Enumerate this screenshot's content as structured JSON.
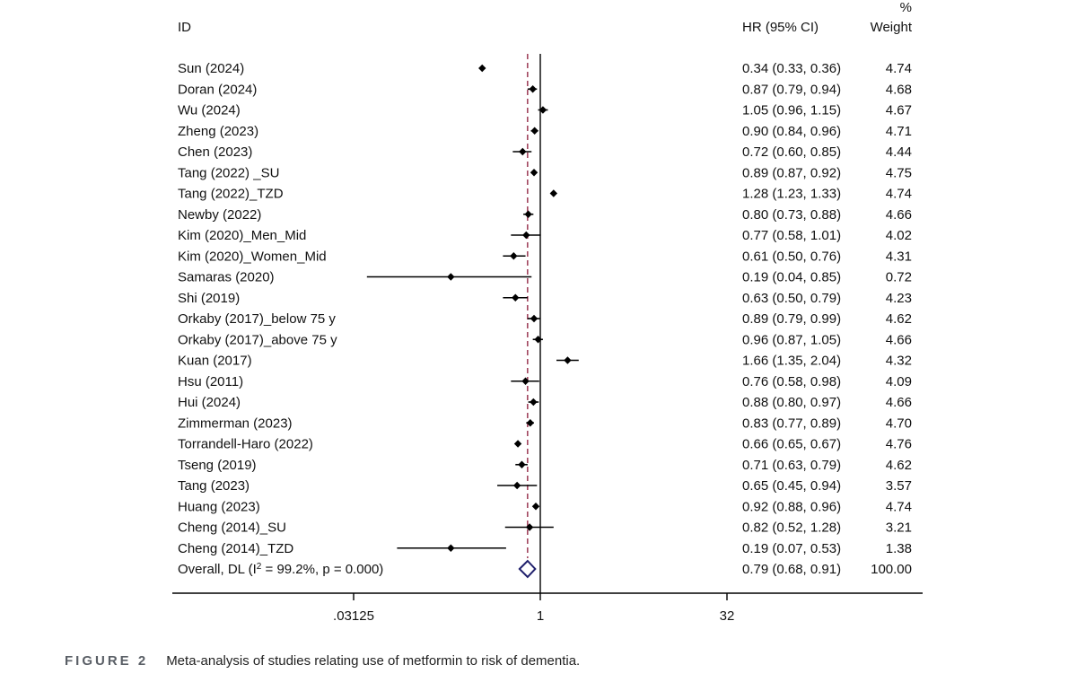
{
  "headers": {
    "id": "ID",
    "hr": "HR (95% CI)",
    "weight_line1": "%",
    "weight_line2": "Weight"
  },
  "chart_data": {
    "type": "forest",
    "x_scale": "log2",
    "x_ticks": [
      ".03125",
      "1",
      "32"
    ],
    "x_tick_values": [
      0.03125,
      1,
      32
    ],
    "xlim": [
      0.03125,
      32
    ],
    "null_line": 1,
    "overall_line": 0.79,
    "colors": {
      "marker": "#000000",
      "diamond": "#1f1f6b",
      "reference": "#8b1a3a"
    },
    "studies": [
      {
        "id": "Sun (2024)",
        "hr": 0.34,
        "lo": 0.33,
        "hi": 0.36,
        "ci": "0.34 (0.33, 0.36)",
        "weight": "4.74"
      },
      {
        "id": "Doran (2024)",
        "hr": 0.87,
        "lo": 0.79,
        "hi": 0.94,
        "ci": "0.87 (0.79, 0.94)",
        "weight": "4.68"
      },
      {
        "id": "Wu (2024)",
        "hr": 1.05,
        "lo": 0.96,
        "hi": 1.15,
        "ci": "1.05 (0.96, 1.15)",
        "weight": "4.67"
      },
      {
        "id": "Zheng (2023)",
        "hr": 0.9,
        "lo": 0.84,
        "hi": 0.96,
        "ci": "0.90 (0.84, 0.96)",
        "weight": "4.71"
      },
      {
        "id": "Chen (2023)",
        "hr": 0.72,
        "lo": 0.6,
        "hi": 0.85,
        "ci": "0.72 (0.60, 0.85)",
        "weight": "4.44"
      },
      {
        "id": "Tang (2022) _SU",
        "hr": 0.89,
        "lo": 0.87,
        "hi": 0.92,
        "ci": "0.89 (0.87, 0.92)",
        "weight": "4.75"
      },
      {
        "id": "Tang (2022)_TZD",
        "hr": 1.28,
        "lo": 1.23,
        "hi": 1.33,
        "ci": "1.28 (1.23, 1.33)",
        "weight": "4.74"
      },
      {
        "id": "Newby (2022)",
        "hr": 0.8,
        "lo": 0.73,
        "hi": 0.88,
        "ci": "0.80 (0.73, 0.88)",
        "weight": "4.66"
      },
      {
        "id": "Kim (2020)_Men_Mid",
        "hr": 0.77,
        "lo": 0.58,
        "hi": 1.01,
        "ci": "0.77 (0.58, 1.01)",
        "weight": "4.02"
      },
      {
        "id": "Kim (2020)_Women_Mid",
        "hr": 0.61,
        "lo": 0.5,
        "hi": 0.76,
        "ci": "0.61 (0.50, 0.76)",
        "weight": "4.31"
      },
      {
        "id": "Samaras (2020)",
        "hr": 0.19,
        "lo": 0.04,
        "hi": 0.85,
        "ci": "0.19 (0.04, 0.85)",
        "weight": "0.72"
      },
      {
        "id": "Shi (2019)",
        "hr": 0.63,
        "lo": 0.5,
        "hi": 0.79,
        "ci": "0.63 (0.50, 0.79)",
        "weight": "4.23"
      },
      {
        "id": "Orkaby (2017)_below 75 y",
        "hr": 0.89,
        "lo": 0.79,
        "hi": 0.99,
        "ci": "0.89 (0.79, 0.99)",
        "weight": "4.62"
      },
      {
        "id": "Orkaby (2017)_above 75 y",
        "hr": 0.96,
        "lo": 0.87,
        "hi": 1.05,
        "ci": "0.96 (0.87, 1.05)",
        "weight": "4.66"
      },
      {
        "id": "Kuan (2017)",
        "hr": 1.66,
        "lo": 1.35,
        "hi": 2.04,
        "ci": "1.66 (1.35, 2.04)",
        "weight": "4.32"
      },
      {
        "id": "Hsu (2011)",
        "hr": 0.76,
        "lo": 0.58,
        "hi": 0.98,
        "ci": "0.76 (0.58, 0.98)",
        "weight": "4.09"
      },
      {
        "id": "Hui (2024)",
        "hr": 0.88,
        "lo": 0.8,
        "hi": 0.97,
        "ci": "0.88 (0.80, 0.97)",
        "weight": "4.66"
      },
      {
        "id": "Zimmerman (2023)",
        "hr": 0.83,
        "lo": 0.77,
        "hi": 0.89,
        "ci": "0.83 (0.77, 0.89)",
        "weight": "4.70"
      },
      {
        "id": "Torrandell-Haro (2022)",
        "hr": 0.66,
        "lo": 0.65,
        "hi": 0.67,
        "ci": "0.66 (0.65, 0.67)",
        "weight": "4.76"
      },
      {
        "id": "Tseng (2019)",
        "hr": 0.71,
        "lo": 0.63,
        "hi": 0.79,
        "ci": "0.71 (0.63, 0.79)",
        "weight": "4.62"
      },
      {
        "id": "Tang (2023)",
        "hr": 0.65,
        "lo": 0.45,
        "hi": 0.94,
        "ci": "0.65 (0.45, 0.94)",
        "weight": "3.57"
      },
      {
        "id": "Huang (2023)",
        "hr": 0.92,
        "lo": 0.88,
        "hi": 0.96,
        "ci": "0.92 (0.88, 0.96)",
        "weight": "4.74"
      },
      {
        "id": "Cheng (2014)_SU",
        "hr": 0.82,
        "lo": 0.52,
        "hi": 1.28,
        "ci": "0.82 (0.52, 1.28)",
        "weight": "3.21"
      },
      {
        "id": "Cheng (2014)_TZD",
        "hr": 0.19,
        "lo": 0.07,
        "hi": 0.53,
        "ci": "0.19 (0.07, 0.53)",
        "weight": "1.38"
      }
    ],
    "overall": {
      "label_prefix": "Overall, DL (I",
      "label_sup": "2",
      "label_suffix": " = 99.2%, p = 0.000)",
      "hr": 0.79,
      "lo": 0.68,
      "hi": 0.91,
      "ci": "0.79 (0.68, 0.91)",
      "weight": "100.00"
    }
  },
  "caption": {
    "figure": "FIGURE 2",
    "text": "Meta-analysis of studies relating use of metformin to risk of dementia."
  }
}
